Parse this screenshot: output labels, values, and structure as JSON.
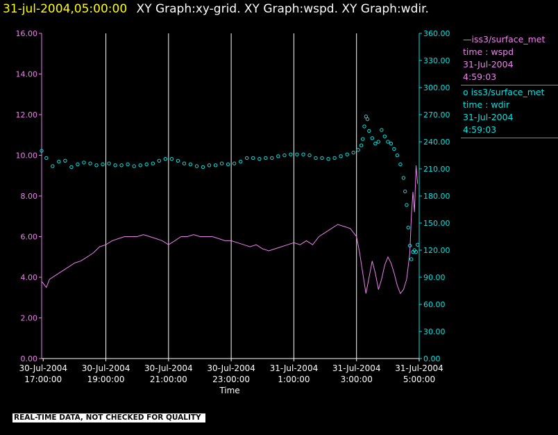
{
  "header": {
    "timestamp": "31-jul-2004,05:00:00",
    "graphs": "XY Graph:xy-grid.  XY Graph:wspd.  XY Graph:wdir."
  },
  "legend": {
    "wspd": {
      "line1": "—iss3/surface_met",
      "line2": "time : wspd",
      "line3": "31-Jul-2004",
      "line4": "4:59:03"
    },
    "wdir": {
      "line1": "o  iss3/surface_met",
      "line2": "time : wdir",
      "line3": "31-Jul-2004",
      "line4": "4:59:03"
    }
  },
  "notice": "REAL-TIME DATA, NOT CHECKED FOR QUALITY",
  "colors": {
    "wspd": "#ee82ee",
    "wdir": "#00e5e5",
    "grid": "#ffffff",
    "background": "#000000"
  },
  "chart_data": {
    "type": "line",
    "xlabel": "Time",
    "x_range_hours": [
      16.95,
      29.0
    ],
    "x_ticks": [
      {
        "x": 17,
        "date": "30-Jul-2004",
        "time": "17:00:00"
      },
      {
        "x": 19,
        "date": "30-Jul-2004",
        "time": "19:00:00"
      },
      {
        "x": 21,
        "date": "30-Jul-2004",
        "time": "21:00:00"
      },
      {
        "x": 23,
        "date": "30-Jul-2004",
        "time": "23:00:00"
      },
      {
        "x": 25,
        "date": "31-Jul-2004",
        "time": "1:00:00"
      },
      {
        "x": 27,
        "date": "31-Jul-2004",
        "time": "3:00:00"
      },
      {
        "x": 29,
        "date": "31-Jul-2004",
        "time": "5:00:00"
      }
    ],
    "y_left": {
      "name": "wspd",
      "range": [
        0,
        16
      ],
      "ticks": [
        "0.00",
        "2.00",
        "4.00",
        "6.00",
        "8.00",
        "10.00",
        "12.00",
        "14.00",
        "16.00"
      ]
    },
    "y_right": {
      "name": "wdir",
      "range": [
        0,
        360
      ],
      "ticks": [
        "0.00",
        "30.00",
        "60.00",
        "90.00",
        "120.00",
        "150.00",
        "180.00",
        "210.00",
        "240.00",
        "270.00",
        "300.00",
        "330.00",
        "360.00"
      ]
    },
    "grid": "vertical",
    "series": [
      {
        "name": "iss3/surface_met time : wspd",
        "style": "line",
        "axis": "left",
        "points": [
          [
            16.95,
            3.8
          ],
          [
            17.1,
            3.5
          ],
          [
            17.2,
            3.9
          ],
          [
            17.4,
            4.1
          ],
          [
            17.6,
            4.3
          ],
          [
            17.8,
            4.5
          ],
          [
            18.0,
            4.7
          ],
          [
            18.2,
            4.8
          ],
          [
            18.4,
            5.0
          ],
          [
            18.6,
            5.2
          ],
          [
            18.8,
            5.5
          ],
          [
            19.0,
            5.6
          ],
          [
            19.2,
            5.8
          ],
          [
            19.4,
            5.9
          ],
          [
            19.6,
            6.0
          ],
          [
            19.8,
            6.0
          ],
          [
            20.0,
            6.0
          ],
          [
            20.2,
            6.1
          ],
          [
            20.4,
            6.0
          ],
          [
            20.6,
            5.9
          ],
          [
            20.8,
            5.8
          ],
          [
            21.0,
            5.6
          ],
          [
            21.2,
            5.8
          ],
          [
            21.4,
            6.0
          ],
          [
            21.6,
            6.0
          ],
          [
            21.8,
            6.1
          ],
          [
            22.0,
            6.0
          ],
          [
            22.2,
            6.0
          ],
          [
            22.4,
            6.0
          ],
          [
            22.6,
            5.9
          ],
          [
            22.8,
            5.8
          ],
          [
            23.0,
            5.8
          ],
          [
            23.2,
            5.7
          ],
          [
            23.4,
            5.6
          ],
          [
            23.6,
            5.5
          ],
          [
            23.8,
            5.6
          ],
          [
            24.0,
            5.4
          ],
          [
            24.2,
            5.3
          ],
          [
            24.4,
            5.4
          ],
          [
            24.6,
            5.5
          ],
          [
            24.8,
            5.6
          ],
          [
            25.0,
            5.7
          ],
          [
            25.2,
            5.6
          ],
          [
            25.4,
            5.8
          ],
          [
            25.6,
            5.6
          ],
          [
            25.8,
            6.0
          ],
          [
            26.0,
            6.2
          ],
          [
            26.2,
            6.4
          ],
          [
            26.4,
            6.6
          ],
          [
            26.6,
            6.5
          ],
          [
            26.8,
            6.4
          ],
          [
            27.0,
            6.0
          ],
          [
            27.1,
            5.2
          ],
          [
            27.2,
            4.2
          ],
          [
            27.3,
            3.2
          ],
          [
            27.4,
            4.0
          ],
          [
            27.5,
            4.8
          ],
          [
            27.6,
            4.2
          ],
          [
            27.7,
            3.4
          ],
          [
            27.8,
            3.9
          ],
          [
            27.9,
            4.6
          ],
          [
            28.0,
            5.0
          ],
          [
            28.1,
            4.7
          ],
          [
            28.2,
            4.2
          ],
          [
            28.3,
            3.6
          ],
          [
            28.4,
            3.2
          ],
          [
            28.5,
            3.4
          ],
          [
            28.6,
            3.9
          ],
          [
            28.7,
            5.2
          ],
          [
            28.75,
            7.0
          ],
          [
            28.8,
            8.2
          ],
          [
            28.85,
            7.2
          ],
          [
            28.9,
            9.5
          ],
          [
            28.95,
            8.6
          ]
        ]
      },
      {
        "name": "iss3/surface_met time : wdir",
        "style": "scatter",
        "axis": "right",
        "points": [
          [
            16.95,
            230
          ],
          [
            17.1,
            222
          ],
          [
            17.3,
            213
          ],
          [
            17.5,
            218
          ],
          [
            17.7,
            219
          ],
          [
            17.9,
            212
          ],
          [
            18.1,
            215
          ],
          [
            18.3,
            217
          ],
          [
            18.5,
            216
          ],
          [
            18.7,
            214
          ],
          [
            18.9,
            215
          ],
          [
            19.1,
            216
          ],
          [
            19.3,
            214
          ],
          [
            19.5,
            214
          ],
          [
            19.7,
            215
          ],
          [
            19.9,
            213
          ],
          [
            20.1,
            214
          ],
          [
            20.3,
            215
          ],
          [
            20.5,
            216
          ],
          [
            20.7,
            219
          ],
          [
            20.9,
            221
          ],
          [
            21.1,
            221
          ],
          [
            21.3,
            219
          ],
          [
            21.5,
            216
          ],
          [
            21.7,
            215
          ],
          [
            21.9,
            213
          ],
          [
            22.1,
            212
          ],
          [
            22.3,
            214
          ],
          [
            22.5,
            214
          ],
          [
            22.7,
            216
          ],
          [
            22.9,
            215
          ],
          [
            23.1,
            216
          ],
          [
            23.3,
            218
          ],
          [
            23.5,
            222
          ],
          [
            23.7,
            222
          ],
          [
            23.9,
            221
          ],
          [
            24.1,
            222
          ],
          [
            24.3,
            222
          ],
          [
            24.5,
            224
          ],
          [
            24.7,
            225
          ],
          [
            24.9,
            226
          ],
          [
            25.1,
            226
          ],
          [
            25.3,
            226
          ],
          [
            25.5,
            225
          ],
          [
            25.7,
            222
          ],
          [
            25.9,
            222
          ],
          [
            26.1,
            221
          ],
          [
            26.3,
            222
          ],
          [
            26.5,
            224
          ],
          [
            26.7,
            226
          ],
          [
            26.9,
            228
          ],
          [
            27.05,
            231
          ],
          [
            27.15,
            236
          ],
          [
            27.2,
            243
          ],
          [
            27.25,
            257
          ],
          [
            27.3,
            268
          ],
          [
            27.35,
            265
          ],
          [
            27.4,
            252
          ],
          [
            27.5,
            244
          ],
          [
            27.6,
            238
          ],
          [
            27.7,
            240
          ],
          [
            27.8,
            253
          ],
          [
            27.9,
            246
          ],
          [
            28.0,
            240
          ],
          [
            28.1,
            238
          ],
          [
            28.2,
            232
          ],
          [
            28.3,
            225
          ],
          [
            28.4,
            215
          ],
          [
            28.5,
            200
          ],
          [
            28.55,
            185
          ],
          [
            28.6,
            170
          ],
          [
            28.65,
            145
          ],
          [
            28.7,
            125
          ],
          [
            28.75,
            110
          ],
          [
            28.8,
            118
          ],
          [
            28.85,
            120
          ],
          [
            28.9,
            118
          ],
          [
            28.95,
            126
          ]
        ]
      }
    ]
  }
}
